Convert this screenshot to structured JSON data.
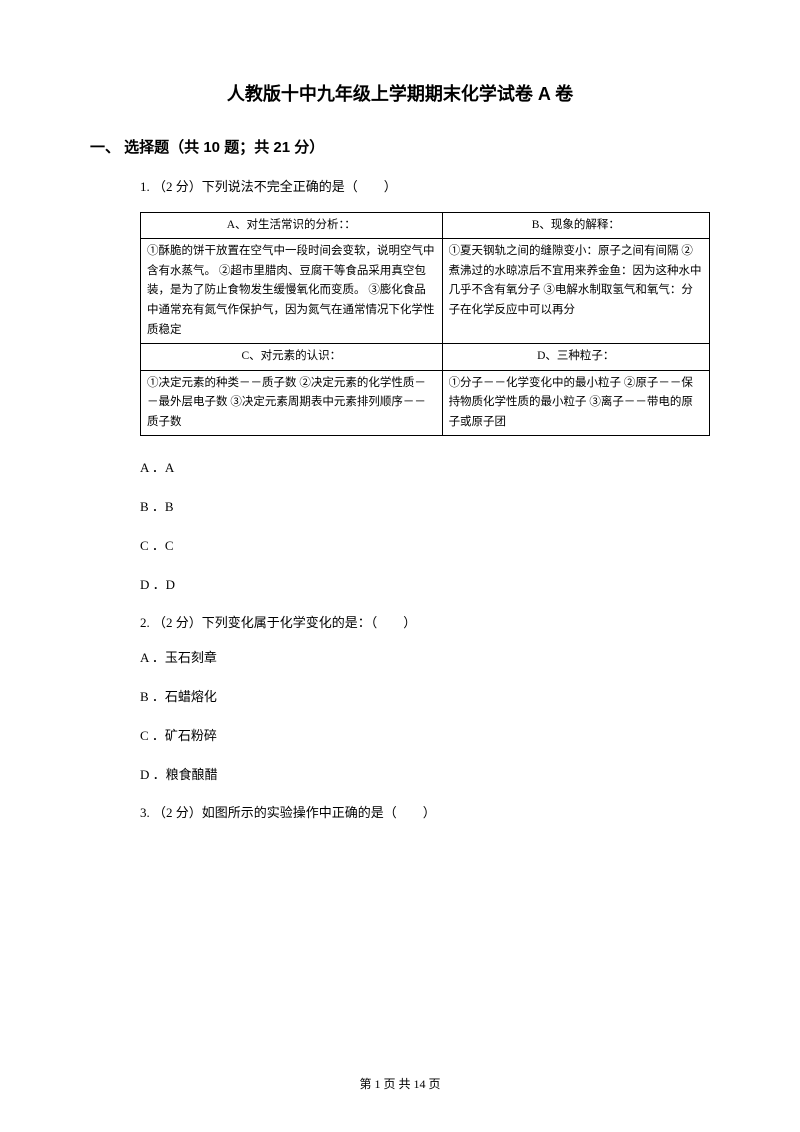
{
  "title": "人教版十中九年级上学期期末化学试卷 A 卷",
  "section": "一、 选择题（共 10 题；共 21 分）",
  "q1": {
    "num": "1.",
    "points": "（2 分）",
    "text": "下列说法不完全正确的是（　　）",
    "table": {
      "h1": "A、对生活常识的分析：：",
      "h2": "B、现象的解释：",
      "c1": "①酥脆的饼干放置在空气中一段时间会变软，说明空气中含有水蒸气。\n②超市里腊肉、豆腐干等食品采用真空包装，是为了防止食物发生缓慢氧化而变质。\n③膨化食品中通常充有氮气作保护气，因为氮气在通常情况下化学性质稳定",
      "c2": "①夏天钢轨之间的缝隙变小：原子之间有间隔\n②煮沸过的水晾凉后不宜用来养金鱼：因为这种水中几乎不含有氧分子\n③电解水制取氢气和氧气：分子在化学反应中可以再分",
      "h3": "C、对元素的认识：",
      "h4": "D、三种粒子：",
      "c3": "①决定元素的种类－－质子数\n②决定元素的化学性质－－最外层电子数\n③决定元素周期表中元素排列顺序－－质子数",
      "c4": "①分子－－化学变化中的最小粒子\n②原子－－保持物质化学性质的最小粒子\n③离子－－带电的原子或原子团"
    },
    "optA": "A ．A",
    "optB": "B ．B",
    "optC": "C ．C",
    "optD": "D ．D"
  },
  "q2": {
    "num": "2.",
    "points": "（2 分）",
    "text": "下列变化属于化学变化的是：（　　）",
    "optA": "A ．玉石刻章",
    "optB": "B ．石蜡熔化",
    "optC": "C ．矿石粉碎",
    "optD": "D ．粮食酿醋"
  },
  "q3": {
    "num": "3.",
    "points": "（2 分）",
    "text": "如图所示的实验操作中正确的是（　　）"
  },
  "footer": {
    "prefix": "第",
    "page": "1",
    "mid": "页 共",
    "total": "14",
    "suffix": "页"
  }
}
